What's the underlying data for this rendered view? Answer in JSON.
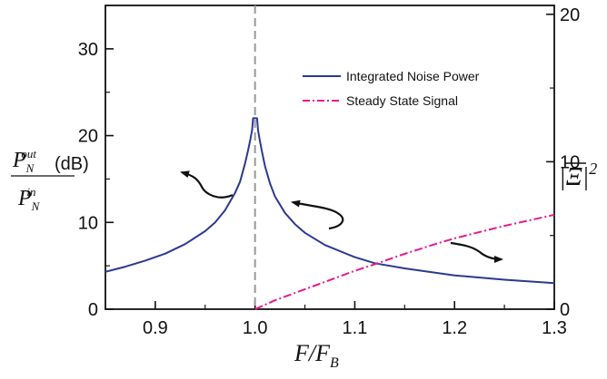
{
  "chart_data": {
    "type": "line",
    "xlabel": {
      "main": "F/F",
      "sub": "B"
    },
    "ylabel_left": {
      "numerator": "P",
      "numerator_sub": "N",
      "numerator_sup": "out",
      "denominator": "P",
      "denominator_sub": "N",
      "denominator_sup": "in",
      "unit": "(dB)"
    },
    "ylabel_right": {
      "text": "|Ξ|",
      "sup": "2"
    },
    "xlim": [
      0.85,
      1.3
    ],
    "ylim_left": [
      0,
      35
    ],
    "ylim_right": [
      0,
      20.6
    ],
    "xticks": [
      {
        "value": 0.9,
        "label": "0.9"
      },
      {
        "value": 1.0,
        "label": "1.0"
      },
      {
        "value": 1.1,
        "label": "1.1"
      },
      {
        "value": 1.2,
        "label": "1.2"
      },
      {
        "value": 1.3,
        "label": "1.3"
      }
    ],
    "yticks_left": [
      {
        "value": 0,
        "label": "0"
      },
      {
        "value": 10,
        "label": "10"
      },
      {
        "value": 20,
        "label": "20"
      },
      {
        "value": 30,
        "label": "30"
      }
    ],
    "yticks_right": [
      {
        "value": 0,
        "label": "0"
      },
      {
        "value": 10,
        "label": "10"
      },
      {
        "value": 20,
        "label": "20"
      }
    ],
    "vline": {
      "x": 1.0,
      "style": "dashed",
      "color": "#999999"
    },
    "series": [
      {
        "name": "Integrated Noise Power",
        "axis": "left",
        "color": "#2b3990",
        "style": "solid",
        "x": [
          0.85,
          0.87,
          0.89,
          0.91,
          0.93,
          0.95,
          0.96,
          0.97,
          0.98,
          0.985,
          0.99,
          0.993,
          0.995,
          0.997,
          0.998,
          1.002,
          1.003,
          1.005,
          1.007,
          1.01,
          1.015,
          1.02,
          1.03,
          1.04,
          1.05,
          1.07,
          1.1,
          1.12,
          1.15,
          1.2,
          1.25,
          1.3
        ],
        "y": [
          4.3,
          4.9,
          5.6,
          6.4,
          7.5,
          9.0,
          10.0,
          11.4,
          13.4,
          14.7,
          16.8,
          18.3,
          19.4,
          20.6,
          22.0,
          22.0,
          20.6,
          19.3,
          18.1,
          16.5,
          14.5,
          13.0,
          11.1,
          9.8,
          8.8,
          7.4,
          6.0,
          5.3,
          4.7,
          3.9,
          3.4,
          3.0
        ]
      },
      {
        "name": "Steady State Signal",
        "axis": "right",
        "color": "#e6198c",
        "style": "dashdot",
        "x": [
          1.0,
          1.02,
          1.04,
          1.06,
          1.08,
          1.1,
          1.12,
          1.15,
          1.18,
          1.2,
          1.22,
          1.25,
          1.28,
          1.3
        ],
        "y": [
          0.0,
          0.6,
          1.1,
          1.6,
          2.1,
          2.6,
          3.05,
          3.75,
          4.4,
          4.8,
          5.15,
          5.65,
          6.1,
          6.4
        ]
      }
    ],
    "legend": {
      "position": "top-right"
    },
    "grid": false
  }
}
